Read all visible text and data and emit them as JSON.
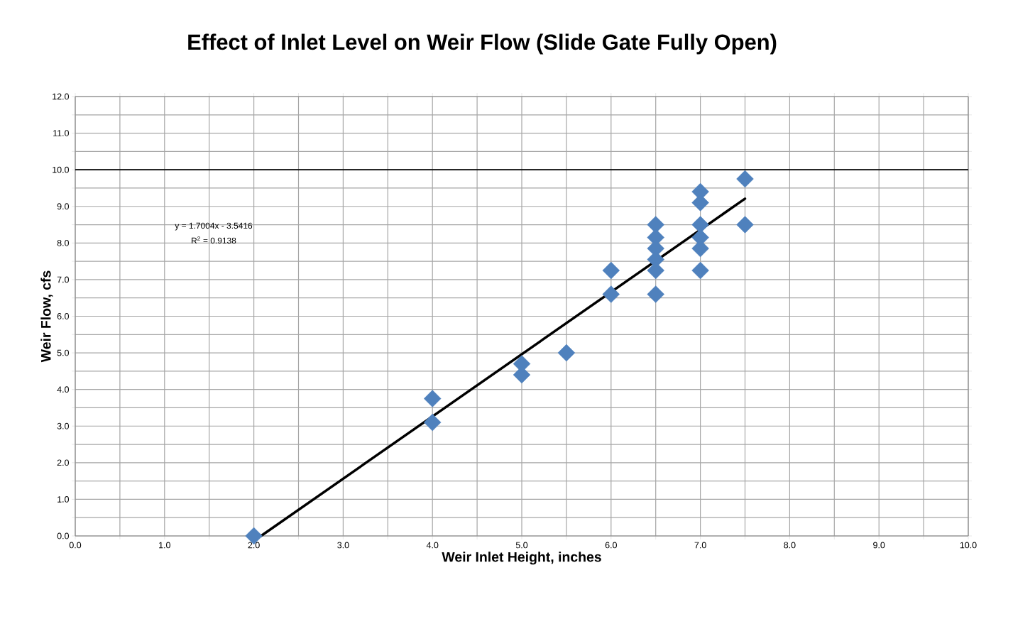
{
  "chart_data": {
    "type": "scatter",
    "title": "Effect of Inlet Level on Weir Flow (Slide Gate Fully Open)",
    "xlabel": "Weir Inlet Height, inches",
    "ylabel": "Weir Flow, cfs",
    "annotations": [
      "y = 1.7004x - 3.5416",
      "R$^{2}$ = 0.9138"
    ],
    "series": [
      {
        "color": "#4f81bd",
        "marker": "diamond",
        "x": [
          2.0,
          4.0,
          4.0,
          5.0,
          5.0,
          5.5,
          6.0,
          6.0,
          6.5,
          6.5,
          6.5,
          6.5,
          6.5,
          6.5,
          7.0,
          7.0,
          7.0,
          7.0,
          7.0,
          7.0,
          7.5,
          7.5
        ],
        "values": [
          0.0,
          3.75,
          3.1,
          4.7,
          4.4,
          5.0,
          7.25,
          6.6,
          8.5,
          8.15,
          7.85,
          7.55,
          7.25,
          6.6,
          9.4,
          9.1,
          8.5,
          8.15,
          7.85,
          7.25,
          9.75,
          8.5
        ]
      },
      {
        "type": "line",
        "color": "#000000",
        "marker": "none",
        "x": [
          2.08,
          7.5
        ],
        "values": [
          0.0,
          9.21
        ]
      }
    ],
    "ref_lines": [
      {
        "axis": "y",
        "value": 10,
        "color": "#000000"
      }
    ],
    "grid": true,
    "xlim": [
      0,
      10
    ],
    "ylim": [
      0,
      12
    ],
    "xticks": [
      {
        "value": 0,
        "label": "0.0"
      },
      {
        "value": 0.5,
        "label": null
      },
      {
        "value": 1,
        "label": "1.0"
      },
      {
        "value": 1.5,
        "label": null
      },
      {
        "value": 2,
        "label": "2.0"
      },
      {
        "value": 2.5,
        "label": null
      },
      {
        "value": 3,
        "label": "3.0"
      },
      {
        "value": 3.5,
        "label": null
      },
      {
        "value": 4,
        "label": "4.0"
      },
      {
        "value": 4.5,
        "label": null
      },
      {
        "value": 5,
        "label": "5.0"
      },
      {
        "value": 5.5,
        "label": null
      },
      {
        "value": 6,
        "label": "6.0"
      },
      {
        "value": 6.5,
        "label": null
      },
      {
        "value": 7,
        "label": "7.0"
      },
      {
        "value": 7.5,
        "label": null
      },
      {
        "value": 8,
        "label": "8.0"
      },
      {
        "value": 8.5,
        "label": null
      },
      {
        "value": 9,
        "label": "9.0"
      },
      {
        "value": 9.5,
        "label": null
      },
      {
        "value": 10,
        "label": "10.0"
      }
    ],
    "yticks": [
      {
        "value": 0,
        "label": "0.0"
      },
      {
        "value": 0.5,
        "label": null
      },
      {
        "value": 1,
        "label": "1.0"
      },
      {
        "value": 1.5,
        "label": null
      },
      {
        "value": 2,
        "label": "2.0"
      },
      {
        "value": 2.5,
        "label": null
      },
      {
        "value": 3,
        "label": "3.0"
      },
      {
        "value": 3.5,
        "label": null
      },
      {
        "value": 4,
        "label": "4.0"
      },
      {
        "value": 4.5,
        "label": null
      },
      {
        "value": 5,
        "label": "5.0"
      },
      {
        "value": 5.5,
        "label": null
      },
      {
        "value": 6,
        "label": "6.0"
      },
      {
        "value": 6.5,
        "label": null
      },
      {
        "value": 7,
        "label": "7.0"
      },
      {
        "value": 7.5,
        "label": null
      },
      {
        "value": 8,
        "label": "8.0"
      },
      {
        "value": 8.5,
        "label": null
      },
      {
        "value": 9,
        "label": "9.0"
      },
      {
        "value": 9.5,
        "label": null
      },
      {
        "value": 10,
        "label": "10.0"
      },
      {
        "value": 10.5,
        "label": null
      },
      {
        "value": 11,
        "label": "11.0"
      },
      {
        "value": 11.5,
        "label": null
      },
      {
        "value": 12,
        "label": "12.0"
      }
    ]
  }
}
